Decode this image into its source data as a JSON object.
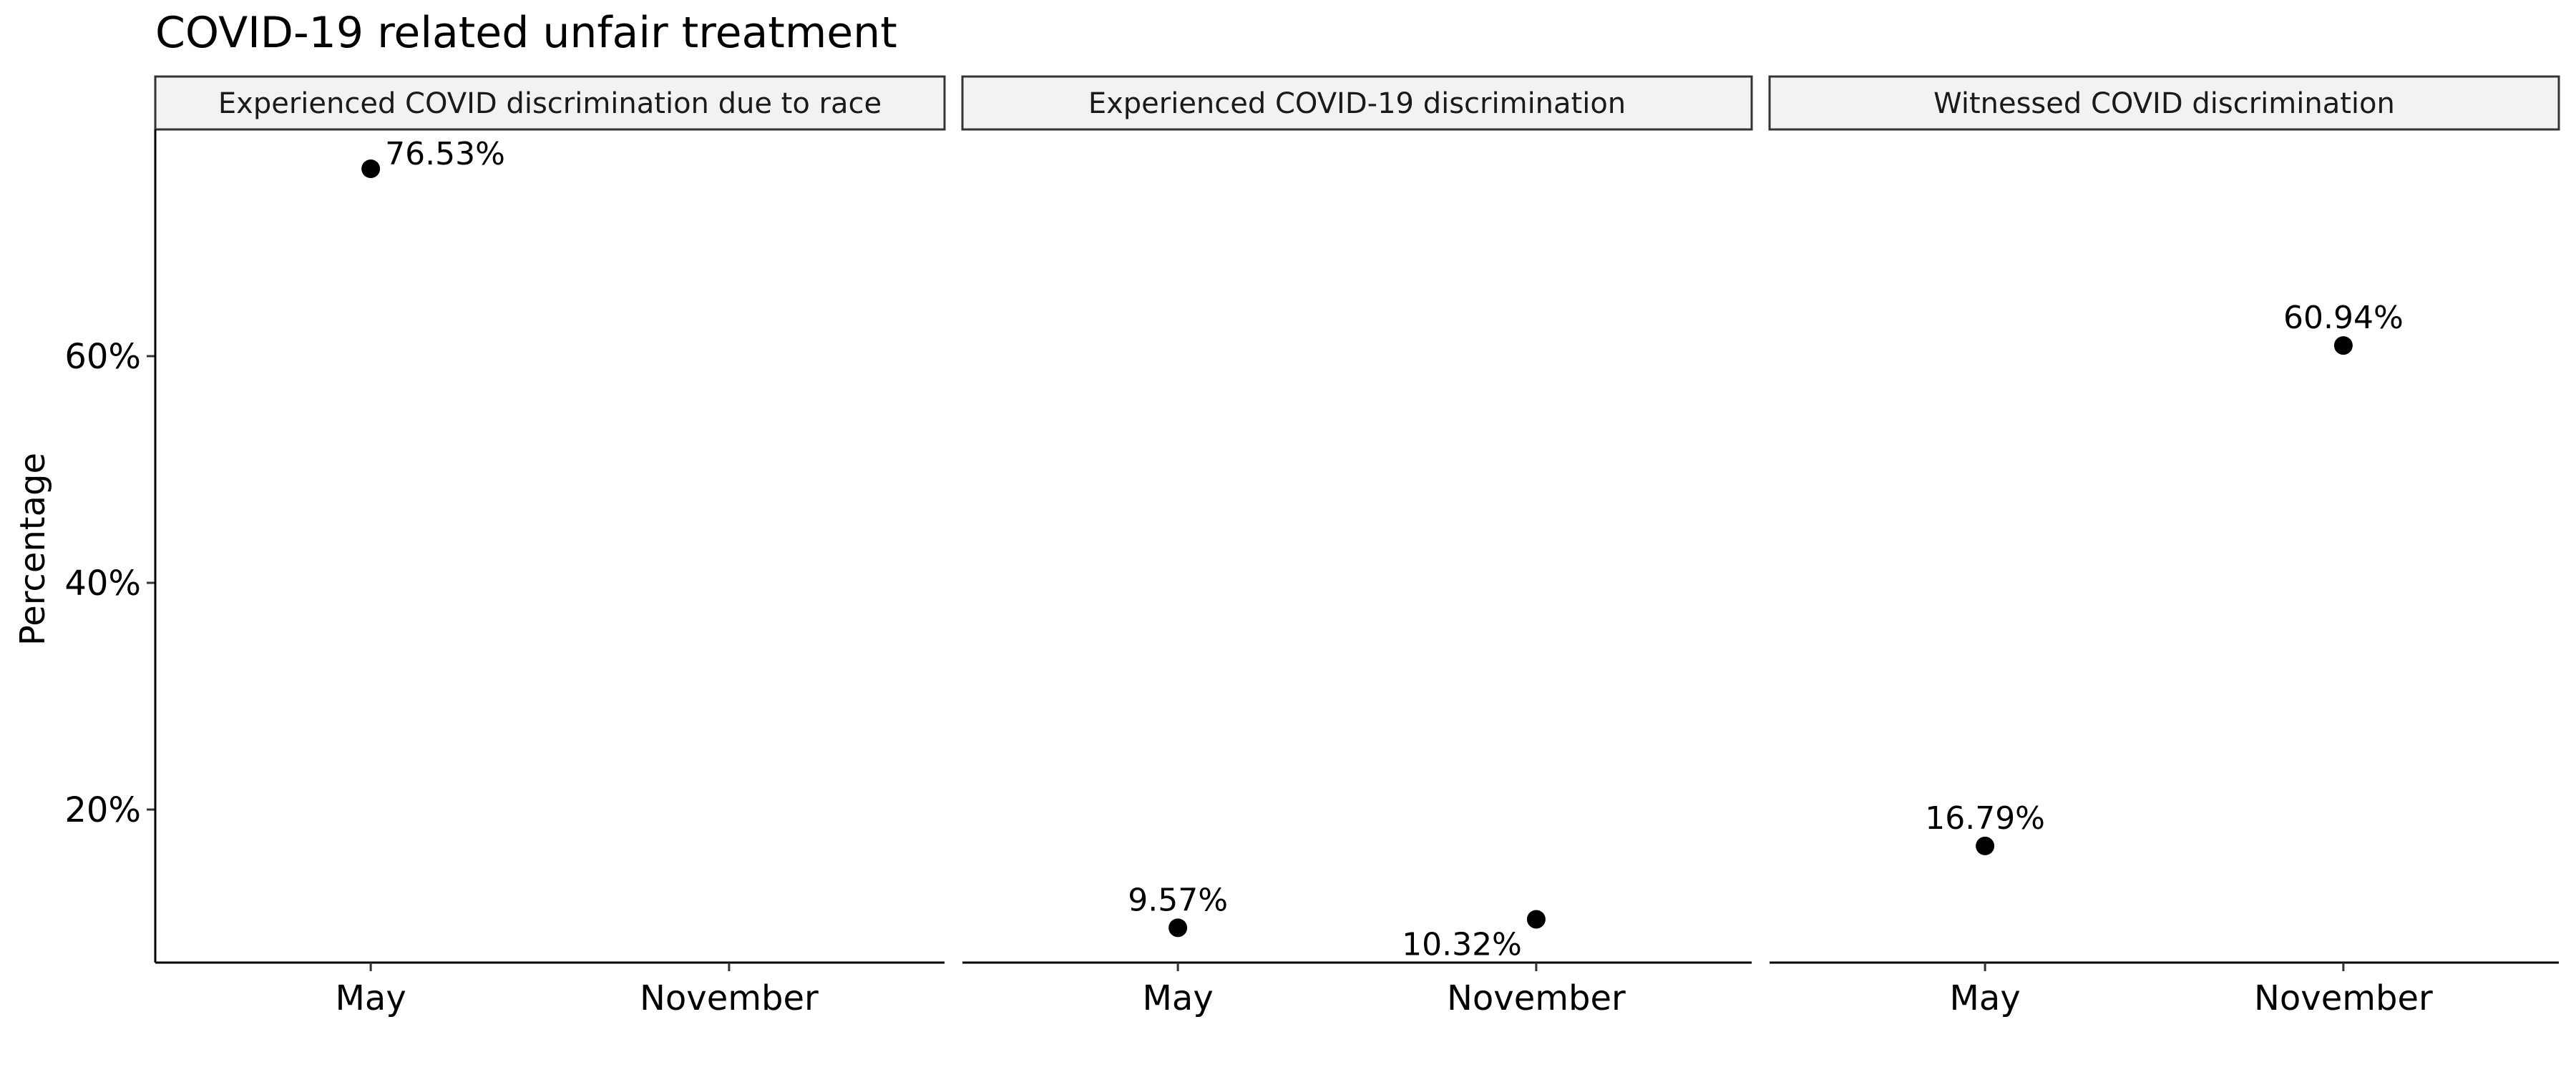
{
  "chart_data": {
    "type": "scatter",
    "title": "COVID-19 related unfair treatment",
    "xlabel": "",
    "ylabel": "Percentage",
    "categories": [
      "May",
      "November"
    ],
    "ylim": [
      6.5,
      80
    ],
    "y_ticks": [
      20,
      40,
      60
    ],
    "y_tick_labels": [
      "20%",
      "40%",
      "60%"
    ],
    "grid": false,
    "point_color": "#000000",
    "strip_fill": "#f2f2f2",
    "panels": [
      {
        "name": "Experienced COVID discrimination due to race",
        "points": [
          {
            "x": "May",
            "y": 76.53,
            "label": "76.53%",
            "label_pos": "right"
          }
        ]
      },
      {
        "name": "Experienced COVID-19 discrimination",
        "points": [
          {
            "x": "May",
            "y": 9.57,
            "label": "9.57%",
            "label_pos": "above"
          },
          {
            "x": "November",
            "y": 10.32,
            "label": "10.32%",
            "label_pos": "below-left"
          }
        ]
      },
      {
        "name": "Witnessed COVID discrimination",
        "points": [
          {
            "x": "May",
            "y": 16.79,
            "label": "16.79%",
            "label_pos": "above"
          },
          {
            "x": "November",
            "y": 60.94,
            "label": "60.94%",
            "label_pos": "above"
          }
        ]
      }
    ]
  }
}
